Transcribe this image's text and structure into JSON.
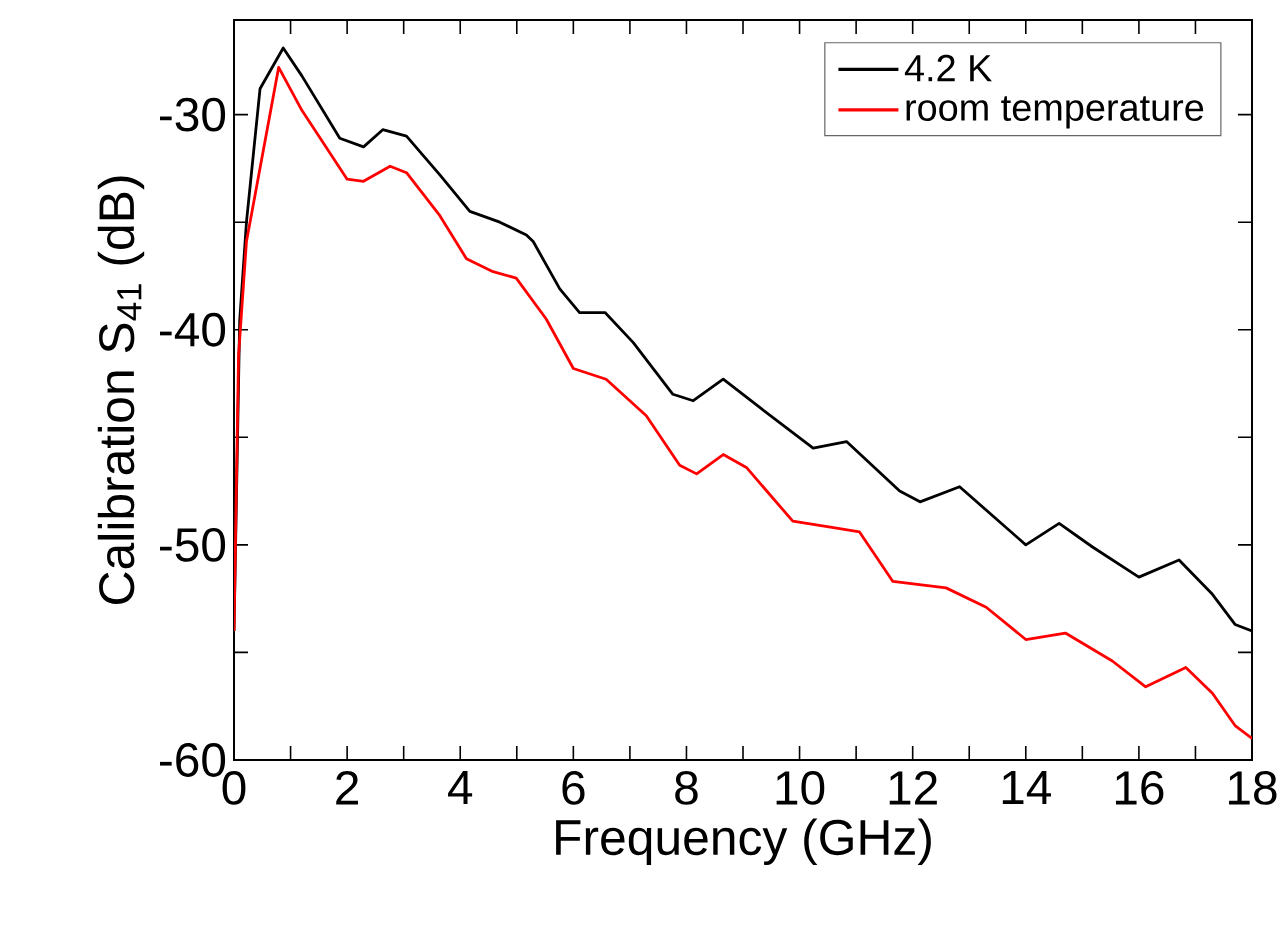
{
  "chart_data": {
    "type": "line",
    "xlabel": "Frequency (GHz)",
    "ylabel": "Calibration S$_{41}$ (dB)",
    "xlim": [
      0,
      18
    ],
    "ylim": [
      -60,
      -25.6
    ],
    "xticks": [
      0,
      {
        "value": 1,
        "label": null
      },
      2,
      {
        "value": 3,
        "label": null
      },
      4,
      {
        "value": 5,
        "label": null
      },
      6,
      {
        "value": 7,
        "label": null
      },
      8,
      {
        "value": 9,
        "label": null
      },
      10,
      {
        "value": 11,
        "label": null
      },
      12,
      {
        "value": 13,
        "label": null
      },
      14,
      {
        "value": 15,
        "label": null
      },
      16,
      {
        "value": 17,
        "label": null
      },
      18
    ],
    "yticks": [
      -60,
      {
        "value": -55,
        "label": null
      },
      -50,
      {
        "value": -45,
        "label": null
      },
      -40,
      {
        "value": -35,
        "label": null
      },
      -30
    ],
    "legend": "top right",
    "grid": false,
    "marker": "none",
    "line_style": "solid",
    "series": [
      {
        "name": "4.2 K",
        "color": "#000000",
        "x": [
          0,
          0.1,
          0.22,
          0.46,
          0.87,
          1.2,
          1.87,
          2.29,
          2.63,
          3.05,
          3.64,
          4.17,
          4.7,
          5.17,
          5.29,
          5.76,
          6.11,
          6.56,
          7.06,
          7.76,
          8.12,
          8.65,
          9.29,
          10.24,
          10.83,
          11.77,
          12.13,
          12.83,
          14.0,
          14.59,
          15.18,
          16.0,
          16.71,
          17.3,
          17.7,
          18
        ],
        "values": [
          -54,
          -39.6,
          -35,
          -28.8,
          -26.9,
          -28.2,
          -31.1,
          -31.5,
          -30.7,
          -31.0,
          -32.8,
          -34.5,
          -35.0,
          -35.6,
          -35.9,
          -38.1,
          -39.2,
          -39.2,
          -40.6,
          -43.0,
          -43.3,
          -42.3,
          -43.6,
          -45.5,
          -45.2,
          -47.5,
          -48.0,
          -47.3,
          -50.0,
          -49.0,
          -50.1,
          -51.5,
          -50.7,
          -52.3,
          -53.7,
          -54
        ]
      },
      {
        "name": "room temperature",
        "color": "#ff0000",
        "x": [
          0,
          0.08,
          0.22,
          0.79,
          1.2,
          2.0,
          2.29,
          2.76,
          3.05,
          3.64,
          4.11,
          4.58,
          4.99,
          5.52,
          6.0,
          6.58,
          7.29,
          7.88,
          8.18,
          8.65,
          9.06,
          9.88,
          10.6,
          11.06,
          11.65,
          12.59,
          13.3,
          14.0,
          14.7,
          15.53,
          16.12,
          16.83,
          17.3,
          17.7,
          18
        ],
        "values": [
          -54,
          -41.2,
          -35.9,
          -27.8,
          -29.8,
          -33.0,
          -33.1,
          -32.4,
          -32.7,
          -34.7,
          -36.7,
          -37.3,
          -37.6,
          -39.5,
          -41.8,
          -42.3,
          -44.0,
          -46.3,
          -46.7,
          -45.8,
          -46.4,
          -48.9,
          -49.2,
          -49.4,
          -51.7,
          -52.0,
          -52.9,
          -54.4,
          -54.1,
          -55.4,
          -56.6,
          -55.7,
          -56.9,
          -58.4,
          -59
        ]
      }
    ]
  }
}
